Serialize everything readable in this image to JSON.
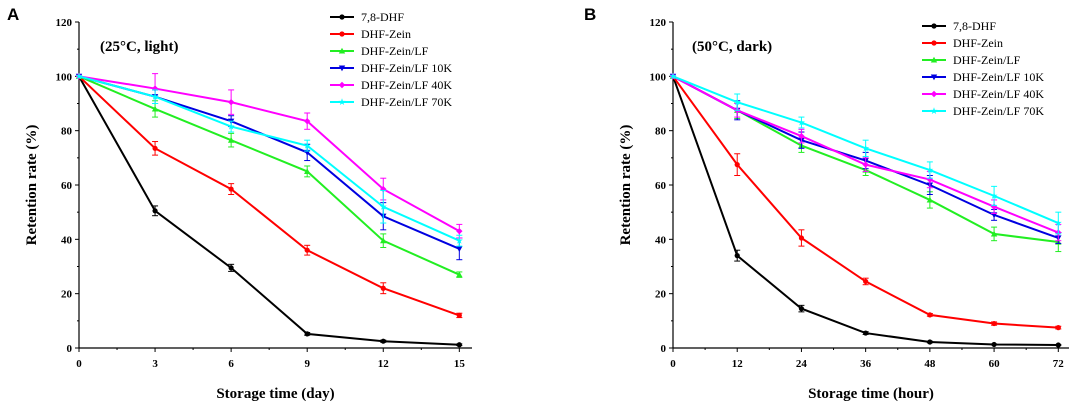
{
  "series_styles": [
    {
      "name": "7,8-DHF",
      "color": "#000000",
      "marker": "circle"
    },
    {
      "name": "DHF-Zein",
      "color": "#ff0000",
      "marker": "circle"
    },
    {
      "name": "DHF-Zein/LF",
      "color": "#22ee22",
      "marker": "tri-up"
    },
    {
      "name": "DHF-Zein/LF 10K",
      "color": "#0000e0",
      "marker": "tri-down"
    },
    {
      "name": "DHF-Zein/LF 40K",
      "color": "#ff00ff",
      "marker": "diamond"
    },
    {
      "name": "DHF-Zein/LF 70K",
      "color": "#00ffff",
      "marker": "star"
    }
  ],
  "chart_data": [
    {
      "type": "line",
      "panel_label": "A",
      "annotation": "(25°C, light)",
      "xlabel": "Storage time (day)",
      "ylabel": "Retention rate (%)",
      "xlim": [
        0,
        15.5
      ],
      "ylim": [
        0,
        120
      ],
      "xticks": [
        0,
        3,
        6,
        9,
        12,
        15
      ],
      "yticks": [
        0,
        20,
        40,
        60,
        80,
        100,
        120
      ],
      "x": [
        0,
        3,
        6,
        9,
        12,
        15
      ],
      "legend": "top-right",
      "series": [
        {
          "name": "7,8-DHF",
          "values": [
            100,
            50.5,
            29.5,
            5.2,
            2.5,
            1.2
          ],
          "errors": [
            0,
            1.8,
            1.3,
            0.5,
            0.4,
            0.3
          ]
        },
        {
          "name": "DHF-Zein",
          "values": [
            100,
            73.5,
            58.5,
            36,
            22,
            12
          ],
          "errors": [
            0,
            2.5,
            2,
            1.8,
            2,
            0.8
          ]
        },
        {
          "name": "DHF-Zein/LF",
          "values": [
            100,
            88,
            76.5,
            65,
            39.5,
            27
          ],
          "errors": [
            0,
            3,
            2.5,
            2,
            2.5,
            1
          ]
        },
        {
          "name": "DHF-Zein/LF 10K",
          "values": [
            100,
            92.5,
            83.5,
            72,
            48.5,
            36.5
          ],
          "errors": [
            0,
            2.5,
            2,
            3,
            5,
            4
          ]
        },
        {
          "name": "DHF-Zein/LF 40K",
          "values": [
            100,
            95.5,
            90.5,
            83.5,
            58.5,
            43
          ],
          "errors": [
            0,
            5.5,
            4.5,
            3,
            4,
            2.5
          ]
        },
        {
          "name": "DHF-Zein/LF 70K",
          "values": [
            100,
            92.5,
            81.5,
            74.5,
            52,
            39.5
          ],
          "errors": [
            0,
            2.5,
            2,
            2,
            6,
            2
          ]
        }
      ]
    },
    {
      "type": "line",
      "panel_label": "B",
      "annotation": "(50°C, dark)",
      "xlabel": "Storage time (hour)",
      "ylabel": "Retention rate (%)",
      "xlim": [
        0,
        74
      ],
      "ylim": [
        0,
        120
      ],
      "xticks": [
        0,
        12,
        24,
        36,
        48,
        60,
        72
      ],
      "yticks": [
        0,
        20,
        40,
        60,
        80,
        100,
        120
      ],
      "x": [
        0,
        12,
        24,
        36,
        48,
        60,
        72
      ],
      "legend": "top-right",
      "series": [
        {
          "name": "7,8-DHF",
          "values": [
            100,
            34,
            14.5,
            5.5,
            2.2,
            1.3,
            1.1
          ],
          "errors": [
            0,
            2,
            1.2,
            0.5,
            0.3,
            0.2,
            0.2
          ]
        },
        {
          "name": "DHF-Zein",
          "values": [
            100,
            67.5,
            40.5,
            24.5,
            12.2,
            9,
            7.5
          ],
          "errors": [
            0,
            4,
            3,
            1.2,
            0.5,
            0.6,
            0.5
          ]
        },
        {
          "name": "DHF-Zein/LF",
          "values": [
            100,
            87.5,
            74.5,
            65.5,
            54.5,
            42,
            39
          ],
          "errors": [
            0,
            3,
            2.5,
            2,
            3,
            2.5,
            3.5
          ]
        },
        {
          "name": "DHF-Zein/LF 10K",
          "values": [
            100,
            87.5,
            76.5,
            69,
            60,
            49,
            40.5
          ],
          "errors": [
            0,
            3.5,
            3,
            3,
            3.5,
            2,
            2
          ]
        },
        {
          "name": "DHF-Zein/LF 40K",
          "values": [
            100,
            87.5,
            78,
            67.5,
            62,
            52,
            42.5
          ],
          "errors": [
            0,
            2.5,
            2.5,
            2.5,
            3,
            2.5,
            3
          ]
        },
        {
          "name": "DHF-Zein/LF 70K",
          "values": [
            100,
            90.5,
            83,
            73.5,
            65.5,
            56,
            46
          ],
          "errors": [
            0,
            3,
            2,
            3,
            3,
            3.5,
            4
          ]
        }
      ]
    }
  ]
}
